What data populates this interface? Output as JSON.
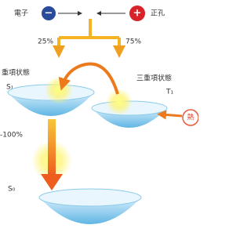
{
  "electron": {
    "label": "電子",
    "sign": "−"
  },
  "hole": {
    "label": "正孔",
    "sign": "+"
  },
  "branches": {
    "left": "25%",
    "right": "75%"
  },
  "singlet": {
    "label": "重項状態",
    "symbol": "S₁"
  },
  "triplet": {
    "label": "三重項状態",
    "symbol": "T₁"
  },
  "heat": {
    "label": "熱"
  },
  "emission": {
    "label": "-100%"
  },
  "ground": {
    "symbol": "S₀"
  }
}
